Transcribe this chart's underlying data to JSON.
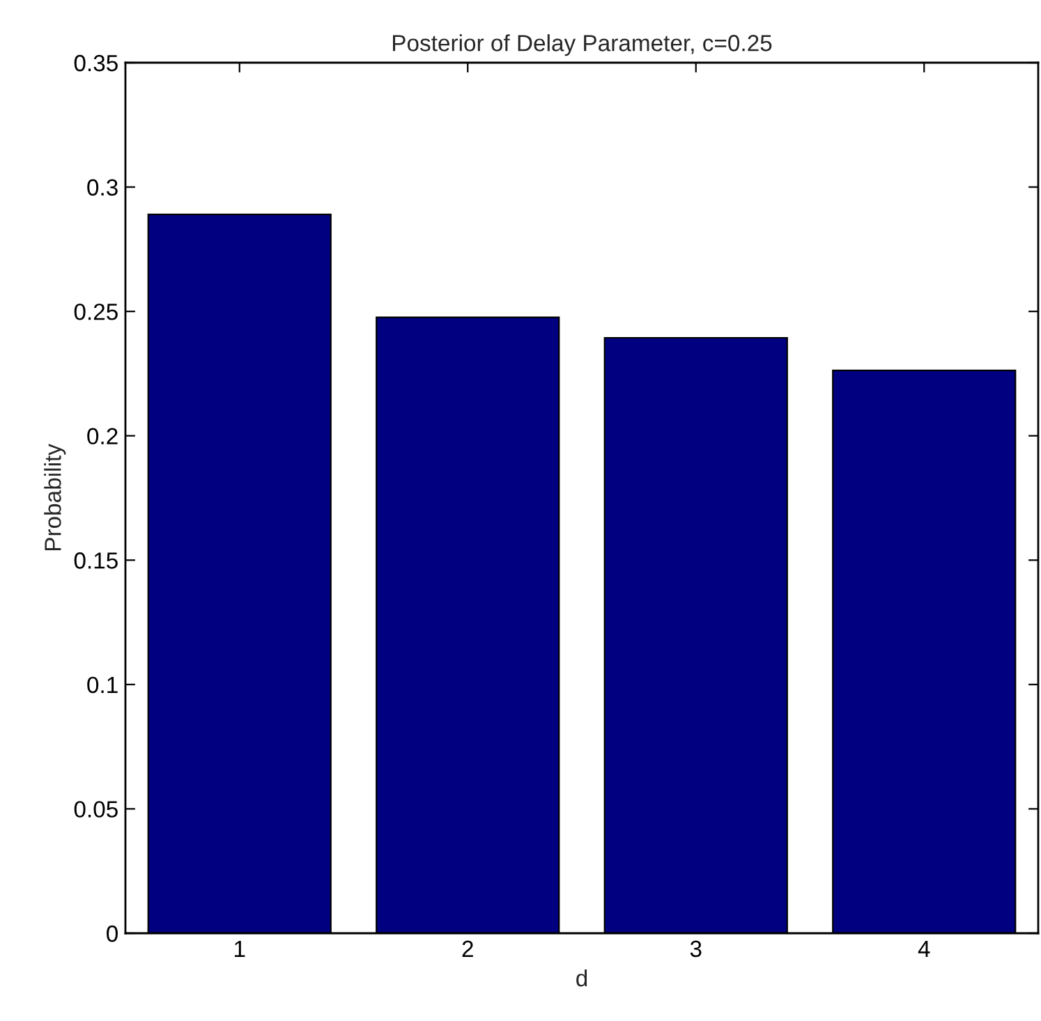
{
  "chart_data": {
    "type": "bar",
    "title": "Posterior of Delay Parameter, c=0.25",
    "xlabel": "d",
    "ylabel": "Probability",
    "categories": [
      "1",
      "2",
      "3",
      "4"
    ],
    "values": [
      0.289,
      0.2476,
      0.2394,
      0.2263
    ],
    "color": "#000080",
    "ylim": [
      0,
      0.35
    ],
    "yticks": [
      0,
      0.05,
      0.1,
      0.15,
      0.2,
      0.25,
      0.3,
      0.35
    ],
    "grid": false
  }
}
